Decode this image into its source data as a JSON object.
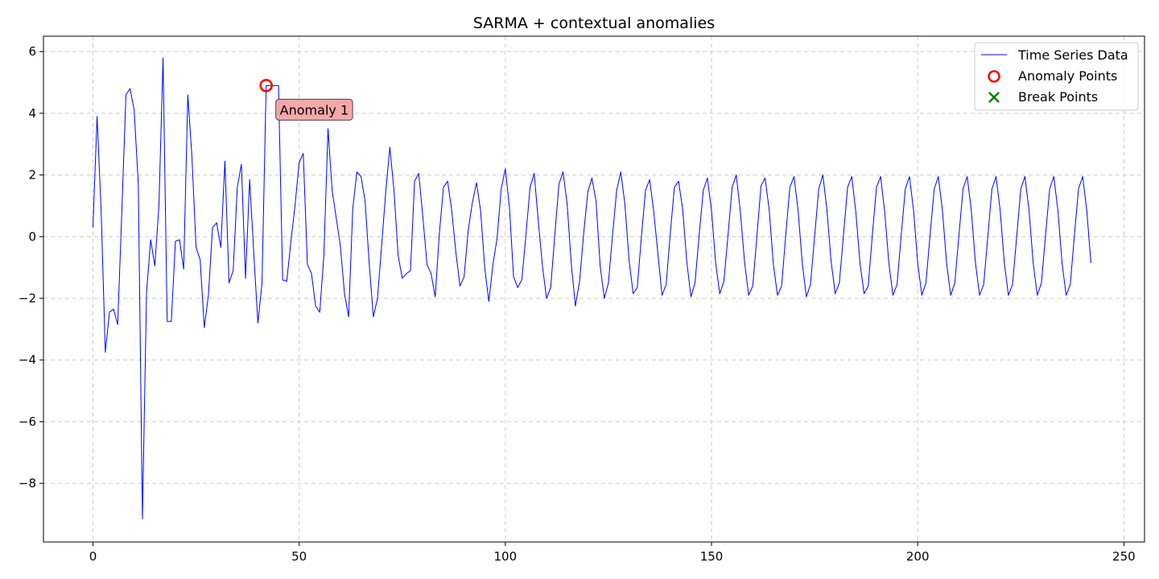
{
  "chart_data": {
    "type": "line",
    "title": "SARMA + contextual anomalies",
    "xlabel": "",
    "ylabel": "",
    "xlim": [
      -12,
      255
    ],
    "ylim": [
      -9.9,
      6.5
    ],
    "xticks": [
      0,
      50,
      100,
      150,
      200,
      250
    ],
    "yticks": [
      -8,
      -6,
      -4,
      -2,
      0,
      2,
      4,
      6
    ],
    "grid": true,
    "legend_position": "top-right",
    "series": [
      {
        "name": "Time Series Data",
        "color": "#0000ff",
        "values": [
          0.3,
          3.9,
          0.8,
          -3.75,
          -2.45,
          -2.35,
          -2.85,
          0.8,
          4.6,
          4.8,
          4.1,
          1.7,
          -9.15,
          -1.8,
          -0.1,
          -0.95,
          1.0,
          5.8,
          -2.75,
          -2.75,
          -0.15,
          -0.1,
          -1.05,
          4.6,
          2.6,
          -0.35,
          -0.75,
          -2.95,
          -1.9,
          0.3,
          0.45,
          -0.35,
          2.45,
          -1.5,
          -1.1,
          1.6,
          2.35,
          -1.35,
          1.85,
          -0.55,
          -2.8,
          -1.5,
          4.9,
          4.9,
          4.9,
          4.9,
          -1.4,
          -1.45,
          -0.15,
          1.0,
          2.4,
          2.7,
          -0.9,
          -1.2,
          -2.25,
          -2.45,
          -0.6,
          3.5,
          1.5,
          0.6,
          -0.3,
          -1.85,
          -2.6,
          0.9,
          2.1,
          1.95,
          1.15,
          -0.9,
          -2.6,
          -2.0,
          -0.3,
          1.45,
          2.9,
          1.5,
          -0.6,
          -1.35,
          -1.2,
          -1.1,
          1.8,
          2.05,
          0.65,
          -0.9,
          -1.2,
          -1.95,
          0.1,
          1.6,
          1.8,
          0.85,
          -0.5,
          -1.6,
          -1.3,
          0.2,
          1.1,
          1.75,
          0.85,
          -1.0,
          -2.1,
          -0.9,
          -0.05,
          1.55,
          2.2,
          0.95,
          -1.3,
          -1.65,
          -1.4,
          0.05,
          1.6,
          2.05,
          0.5,
          -0.95,
          -2.0,
          -1.65,
          0.05,
          1.7,
          2.1,
          1.05,
          -0.9,
          -2.25,
          -1.45,
          0.1,
          1.45,
          1.9,
          1.15,
          -0.95,
          -2.0,
          -1.5,
          0.05,
          1.5,
          2.1,
          1.05,
          -0.75,
          -1.85,
          -1.65,
          0.0,
          1.5,
          1.85,
          0.8,
          -0.55,
          -1.9,
          -1.55,
          0.1,
          1.6,
          1.8,
          0.9,
          -0.8,
          -1.95,
          -1.5,
          0.05,
          1.5,
          1.9,
          0.85,
          -0.85,
          -1.85,
          -1.45,
          0.05,
          1.6,
          2.0,
          0.8,
          -0.8,
          -1.9,
          -1.6,
          0.0,
          1.65,
          1.9,
          0.85,
          -0.9,
          -1.9,
          -1.6,
          0.05,
          1.6,
          1.95,
          0.85,
          -0.85,
          -1.95,
          -1.55,
          0.0,
          1.55,
          2.0,
          0.85,
          -0.8,
          -1.85,
          -1.5,
          0.05,
          1.6,
          1.95,
          0.8,
          -0.85,
          -1.85,
          -1.6,
          0.05,
          1.6,
          1.95,
          0.8,
          -0.85,
          -1.9,
          -1.55,
          0.05,
          1.55,
          1.95,
          0.85,
          -0.85,
          -1.9,
          -1.5,
          0.05,
          1.55,
          1.95,
          0.85,
          -0.85,
          -1.9,
          -1.5,
          0.05,
          1.55,
          1.95,
          0.85,
          -0.85,
          -1.9,
          -1.55,
          0.0,
          1.55,
          1.95,
          0.85,
          -0.85,
          -1.9,
          -1.55,
          0.0,
          1.55,
          1.95,
          0.85,
          -0.85,
          -1.9,
          -1.5,
          0.05,
          1.55,
          1.95,
          0.85,
          -0.85,
          -1.9,
          -1.55,
          0.05,
          1.55,
          1.95,
          0.85,
          -0.85
        ]
      }
    ],
    "anomaly_points": {
      "name": "Anomaly Points",
      "color": "#ff0000",
      "points": [
        {
          "x": 42,
          "y": 4.9
        }
      ]
    },
    "break_points": {
      "name": "Break Points",
      "color": "#008000",
      "points": []
    },
    "annotations": [
      {
        "text": "Anomaly 1",
        "x": 42,
        "y": 4.9,
        "box_color": "#f4a3a3"
      }
    ]
  }
}
